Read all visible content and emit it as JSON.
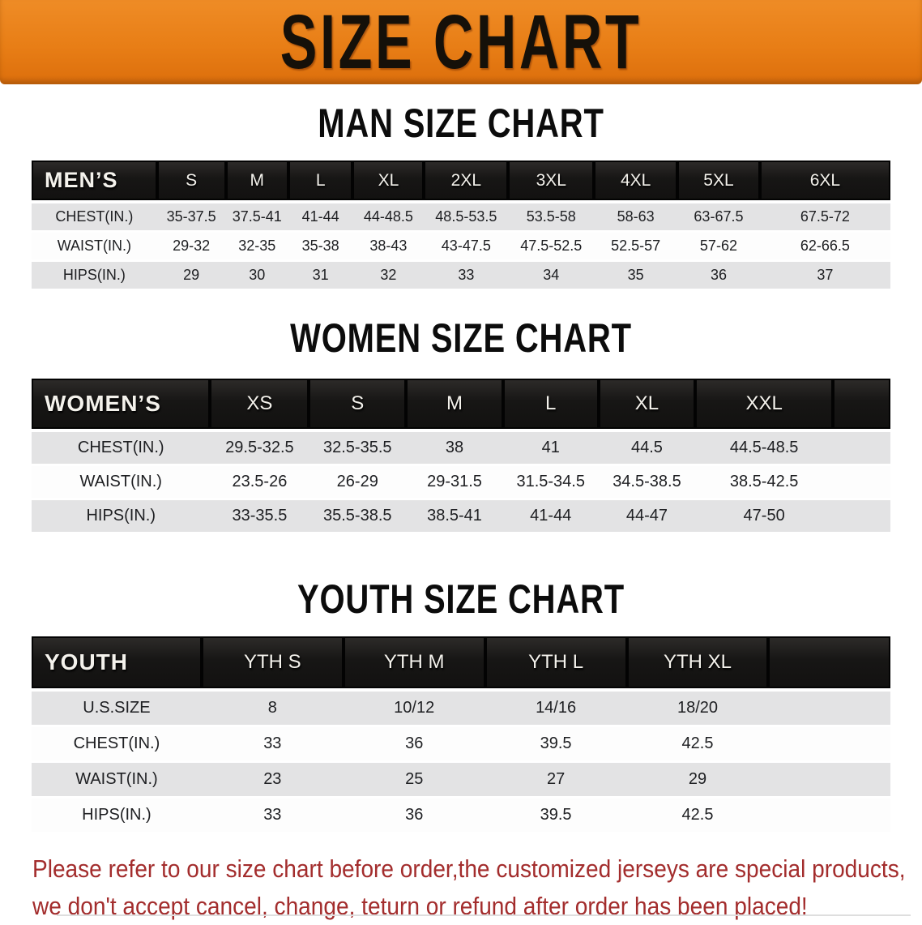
{
  "banner": {
    "title": "SIZE CHART"
  },
  "sections": [
    {
      "id": "men",
      "title": "MAN SIZE CHART",
      "corner_label": "MEN’S",
      "columns": [
        "S",
        "M",
        "L",
        "XL",
        "2XL",
        "3XL",
        "4XL",
        "5XL",
        "6XL"
      ],
      "rows": [
        {
          "label": "CHEST(IN.)",
          "values": [
            "35-37.5",
            "37.5-41",
            "41-44",
            "44-48.5",
            "48.5-53.5",
            "53.5-58",
            "58-63",
            "63-67.5",
            "67.5-72"
          ]
        },
        {
          "label": "WAIST(IN.)",
          "values": [
            "29-32",
            "32-35",
            "35-38",
            "38-43",
            "43-47.5",
            "47.5-52.5",
            "52.5-57",
            "57-62",
            "62-66.5"
          ]
        },
        {
          "label": "HIPS(IN.)",
          "values": [
            "29",
            "30",
            "31",
            "32",
            "33",
            "34",
            "35",
            "36",
            "37"
          ]
        }
      ]
    },
    {
      "id": "women",
      "title": "WOMEN SIZE CHART",
      "corner_label": "WOMEN’S",
      "columns": [
        "XS",
        "S",
        "M",
        "L",
        "XL",
        "XXL"
      ],
      "rows": [
        {
          "label": "CHEST(IN.)",
          "values": [
            "29.5-32.5",
            "32.5-35.5",
            "38",
            "41",
            "44.5",
            "44.5-48.5"
          ]
        },
        {
          "label": "WAIST(IN.)",
          "values": [
            "23.5-26",
            "26-29",
            "29-31.5",
            "31.5-34.5",
            "34.5-38.5",
            "38.5-42.5"
          ]
        },
        {
          "label": "HIPS(IN.)",
          "values": [
            "33-35.5",
            "35.5-38.5",
            "38.5-41",
            "41-44",
            "44-47",
            "47-50"
          ]
        }
      ]
    },
    {
      "id": "youth",
      "title": "YOUTH SIZE CHART",
      "corner_label": "YOUTH",
      "columns": [
        "YTH S",
        "YTH M",
        "YTH L",
        "YTH XL"
      ],
      "rows": [
        {
          "label": "U.S.SIZE",
          "values": [
            "8",
            "10/12",
            "14/16",
            "18/20"
          ]
        },
        {
          "label": "CHEST(IN.)",
          "values": [
            "33",
            "36",
            "39.5",
            "42.5"
          ]
        },
        {
          "label": "WAIST(IN.)",
          "values": [
            "23",
            "25",
            "27",
            "29"
          ]
        },
        {
          "label": "HIPS(IN.)",
          "values": [
            "33",
            "36",
            "39.5",
            "42.5"
          ]
        }
      ]
    }
  ],
  "footer": {
    "line1": "Please refer to our size chart before order,the customized jerseys are special products,",
    "line2": "we don't accept cancel, change, teturn or refund after order has been placed!"
  },
  "colors": {
    "banner_orange": "#e87e16",
    "header_bar_black": "#171615",
    "row_gray": "#e3e3e4",
    "row_white": "#fdfdfd",
    "notice_red": "#a32d2d"
  }
}
